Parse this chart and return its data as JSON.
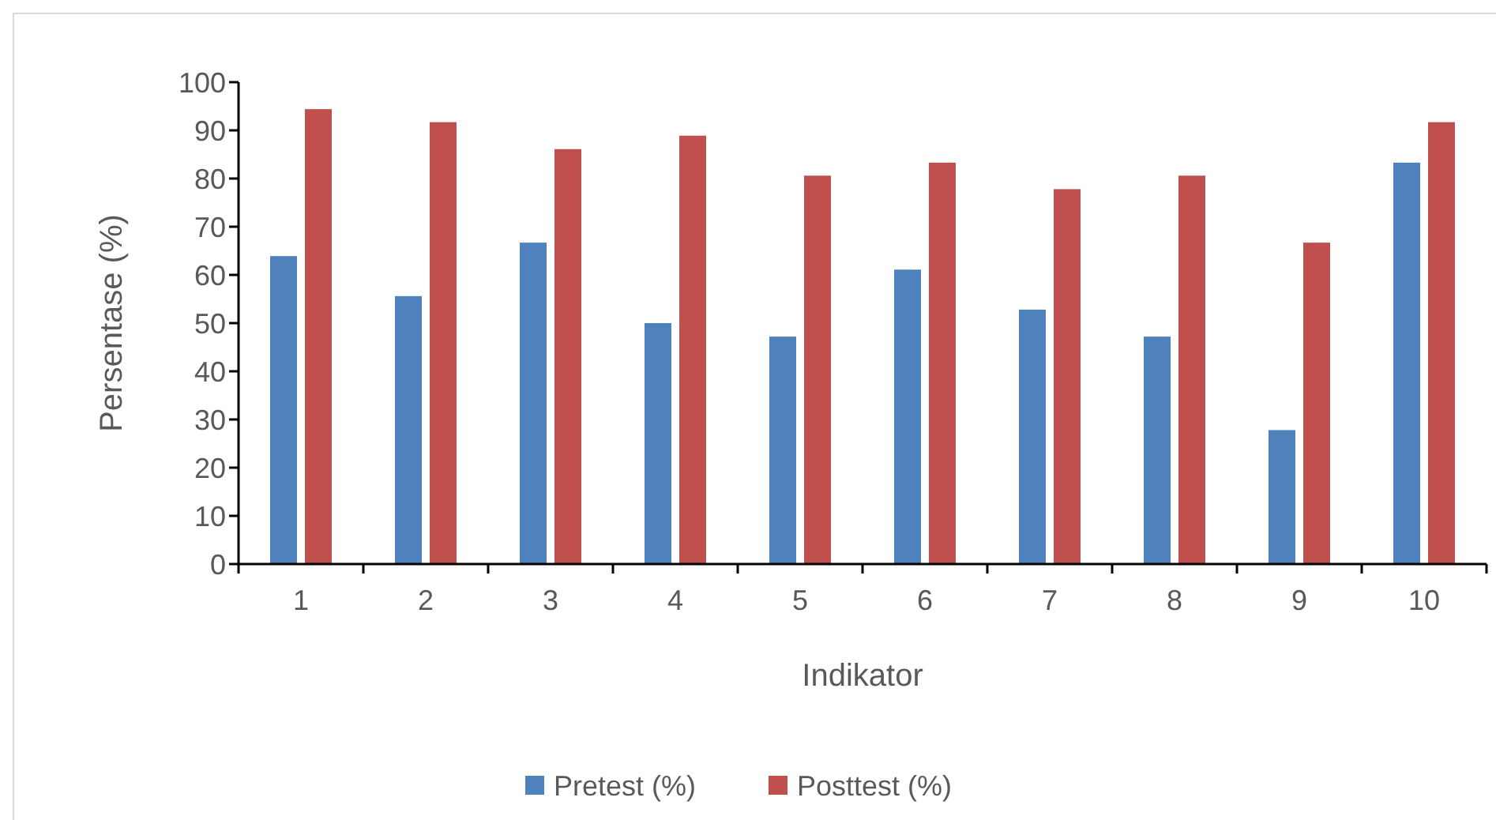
{
  "chart_data": {
    "type": "bar",
    "xlabel": "Indikator",
    "ylabel": "Persentase (%)",
    "categories": [
      "1",
      "2",
      "3",
      "4",
      "5",
      "6",
      "7",
      "8",
      "9",
      "10"
    ],
    "series": [
      {
        "name": "Pretest (%)",
        "color": "#4f81bd",
        "values": [
          63.9,
          55.6,
          66.7,
          50,
          47.2,
          61.1,
          52.8,
          47.2,
          27.8,
          83.3
        ]
      },
      {
        "name": "Posttest (%)",
        "color": "#c0504d",
        "values": [
          94.4,
          91.7,
          86.1,
          88.9,
          80.6,
          83.3,
          77.8,
          80.6,
          66.7,
          91.7
        ]
      }
    ],
    "ylim": [
      0,
      100
    ],
    "yticks": [
      0,
      10,
      20,
      30,
      40,
      50,
      60,
      70,
      80,
      90,
      100
    ],
    "grid": false,
    "legend": "bottom"
  }
}
